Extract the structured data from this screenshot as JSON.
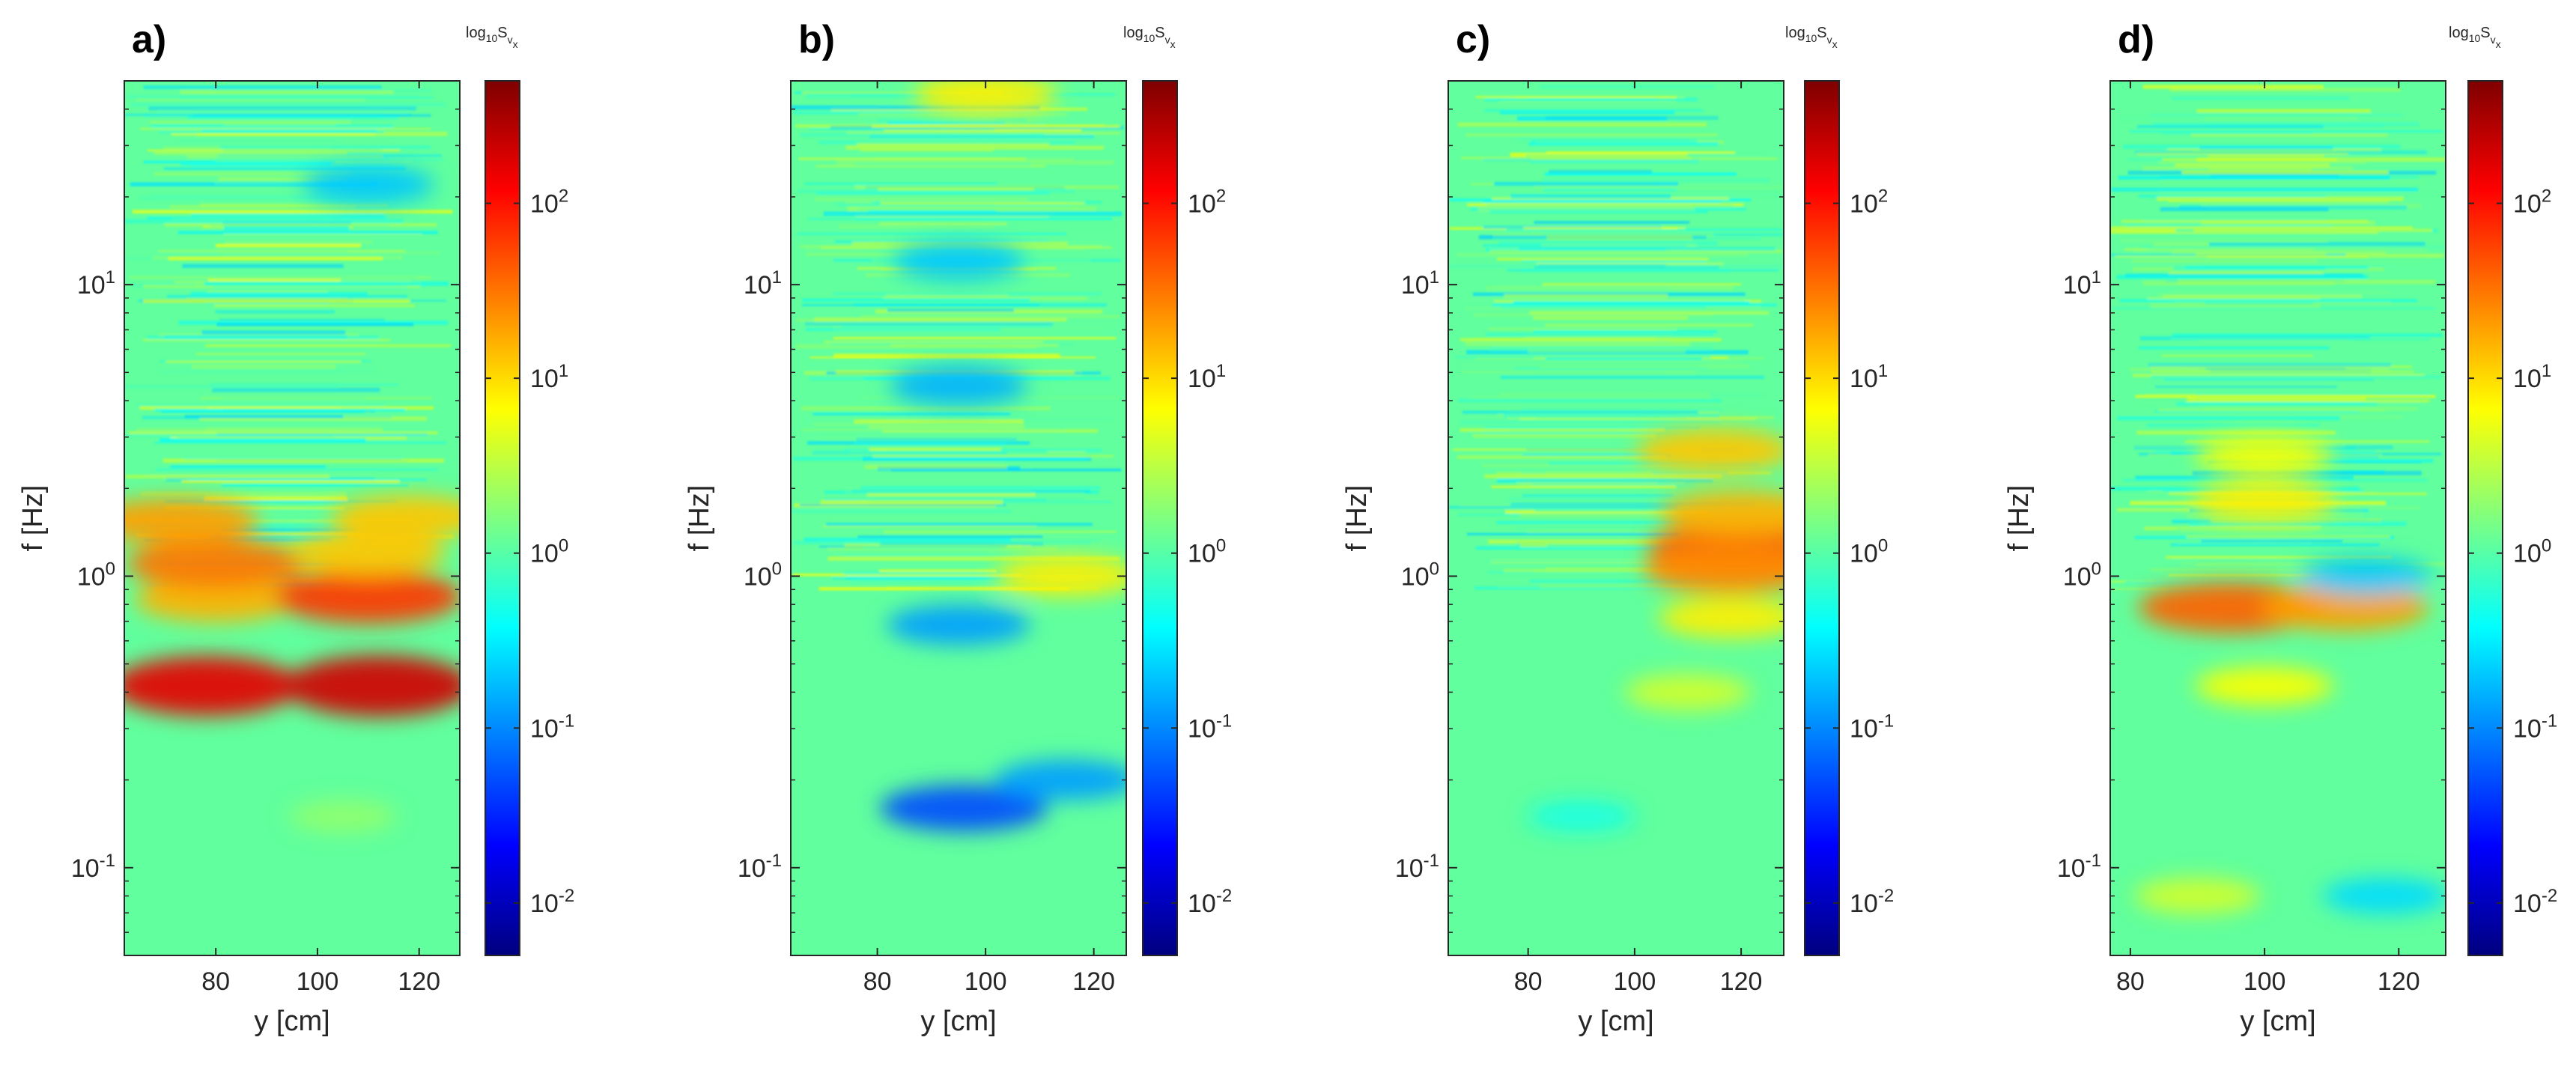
{
  "figure": {
    "colormap": [
      "#00007f",
      "#0000ff",
      "#007fff",
      "#00ffff",
      "#7fff7f",
      "#ffff00",
      "#ff7f00",
      "#ff0000",
      "#7f0000"
    ],
    "colorbar_range_log10": [
      -2.3,
      2.7
    ],
    "background": "#ffffff"
  },
  "chart_data": [
    {
      "type": "heatmap",
      "panel_label": "a)",
      "xlabel": "y [cm]",
      "ylabel": "f [Hz]",
      "xlim": [
        62,
        128
      ],
      "ylim": [
        0.05,
        50
      ],
      "yscale": "log",
      "x_ticks": [
        "80",
        "100",
        "120"
      ],
      "y_ticks": [
        {
          "base": "10",
          "exp": "-1"
        },
        {
          "base": "10",
          "exp": "0"
        },
        {
          "base": "10",
          "exp": "1"
        }
      ],
      "colorbar": {
        "title": {
          "base": "log",
          "sub1": "10",
          "mid": "S",
          "sub2": "v",
          "sub3": "x"
        },
        "ticks": [
          {
            "base": "10",
            "exp": "-2"
          },
          {
            "base": "10",
            "exp": "-1"
          },
          {
            "base": "10",
            "exp": "0"
          },
          {
            "base": "10",
            "exp": "1"
          },
          {
            "base": "10",
            "exp": "2"
          }
        ]
      },
      "features": [
        {
          "y": 78,
          "f": 0.42,
          "log10_value": 2.2
        },
        {
          "y": 112,
          "f": 0.42,
          "log10_value": 2.3
        },
        {
          "y": 80,
          "f": 0.83,
          "log10_value": 1.2
        },
        {
          "y": 110,
          "f": 0.85,
          "log10_value": 1.8
        },
        {
          "y": 80,
          "f": 1.1,
          "log10_value": 1.5
        },
        {
          "y": 110,
          "f": 1.2,
          "log10_value": 1.1
        },
        {
          "y": 72,
          "f": 1.55,
          "log10_value": 1.3
        },
        {
          "y": 118,
          "f": 1.6,
          "log10_value": 1.1
        },
        {
          "y": 110,
          "f": 22,
          "log10_value": -0.7
        },
        {
          "y": 105,
          "f": 0.15,
          "log10_value": 0.3
        }
      ]
    },
    {
      "type": "heatmap",
      "panel_label": "b)",
      "xlabel": "y [cm]",
      "ylabel": "f [Hz]",
      "xlim": [
        64,
        126
      ],
      "ylim": [
        0.05,
        50
      ],
      "yscale": "log",
      "x_ticks": [
        "80",
        "100",
        "120"
      ],
      "y_ticks": [
        {
          "base": "10",
          "exp": "-1"
        },
        {
          "base": "10",
          "exp": "0"
        },
        {
          "base": "10",
          "exp": "1"
        }
      ],
      "colorbar": {
        "title": {
          "base": "log",
          "sub1": "10",
          "mid": "S",
          "sub2": "v",
          "sub3": "x"
        },
        "ticks": [
          {
            "base": "10",
            "exp": "-2"
          },
          {
            "base": "10",
            "exp": "-1"
          },
          {
            "base": "10",
            "exp": "0"
          },
          {
            "base": "10",
            "exp": "1"
          },
          {
            "base": "10",
            "exp": "2"
          }
        ]
      },
      "features": [
        {
          "y": 96,
          "f": 0.16,
          "log10_value": -1.3
        },
        {
          "y": 115,
          "f": 0.2,
          "log10_value": -0.9
        },
        {
          "y": 95,
          "f": 0.68,
          "log10_value": -0.9
        },
        {
          "y": 115,
          "f": 1.0,
          "log10_value": 0.9
        },
        {
          "y": 95,
          "f": 4.5,
          "log10_value": -0.8
        },
        {
          "y": 95,
          "f": 12,
          "log10_value": -0.7
        },
        {
          "y": 100,
          "f": 45,
          "log10_value": 0.9
        }
      ]
    },
    {
      "type": "heatmap",
      "panel_label": "c)",
      "xlabel": "y [cm]",
      "ylabel": "f [Hz]",
      "xlim": [
        65,
        128
      ],
      "ylim": [
        0.05,
        50
      ],
      "yscale": "log",
      "x_ticks": [
        "80",
        "100",
        "120"
      ],
      "y_ticks": [
        {
          "base": "10",
          "exp": "-1"
        },
        {
          "base": "10",
          "exp": "0"
        },
        {
          "base": "10",
          "exp": "1"
        }
      ],
      "colorbar": {
        "title": {
          "base": "log",
          "sub1": "10",
          "mid": "S",
          "sub2": "v",
          "sub3": "x"
        },
        "ticks": [
          {
            "base": "10",
            "exp": "-2"
          },
          {
            "base": "10",
            "exp": "-1"
          },
          {
            "base": "10",
            "exp": "0"
          },
          {
            "base": "10",
            "exp": "1"
          },
          {
            "base": "10",
            "exp": "2"
          }
        ]
      },
      "features": [
        {
          "y": 120,
          "f": 1.25,
          "log10_value": 1.6
        },
        {
          "y": 118,
          "f": 1.05,
          "log10_value": 1.4
        },
        {
          "y": 120,
          "f": 1.65,
          "log10_value": 1.2
        },
        {
          "y": 115,
          "f": 2.7,
          "log10_value": 1.1
        },
        {
          "y": 118,
          "f": 0.72,
          "log10_value": 0.9
        },
        {
          "y": 110,
          "f": 0.4,
          "log10_value": 0.6
        },
        {
          "y": 90,
          "f": 0.15,
          "log10_value": -0.3
        }
      ]
    },
    {
      "type": "heatmap",
      "panel_label": "d)",
      "xlabel": "y [cm]",
      "ylabel": "f [Hz]",
      "xlim": [
        77,
        127
      ],
      "ylim": [
        0.05,
        50
      ],
      "yscale": "log",
      "x_ticks": [
        "80",
        "100",
        "120"
      ],
      "y_ticks": [
        {
          "base": "10",
          "exp": "-1"
        },
        {
          "base": "10",
          "exp": "0"
        },
        {
          "base": "10",
          "exp": "1"
        }
      ],
      "colorbar": {
        "title": {
          "base": "log",
          "sub1": "10",
          "mid": "S",
          "sub2": "v",
          "sub3": "x"
        },
        "ticks": [
          {
            "base": "10",
            "exp": "-2"
          },
          {
            "base": "10",
            "exp": "-1"
          },
          {
            "base": "10",
            "exp": "0"
          },
          {
            "base": "10",
            "exp": "1"
          },
          {
            "base": "10",
            "exp": "2"
          }
        ]
      },
      "features": [
        {
          "y": 95,
          "f": 0.78,
          "log10_value": 1.6
        },
        {
          "y": 112,
          "f": 0.78,
          "log10_value": 1.3
        },
        {
          "y": 100,
          "f": 0.42,
          "log10_value": 0.8
        },
        {
          "y": 115,
          "f": 1.0,
          "log10_value": -0.7
        },
        {
          "y": 118,
          "f": 0.08,
          "log10_value": -0.6
        },
        {
          "y": 90,
          "f": 0.08,
          "log10_value": 0.6
        },
        {
          "y": 100,
          "f": 1.8,
          "log10_value": 0.9
        },
        {
          "y": 100,
          "f": 2.6,
          "log10_value": 0.8
        }
      ]
    }
  ]
}
